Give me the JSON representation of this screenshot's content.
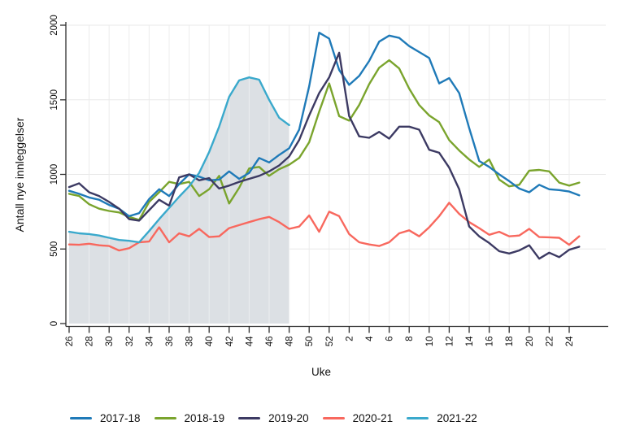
{
  "chart_data": {
    "type": "line",
    "title": "",
    "xlabel": "Uke",
    "ylabel": "Antall nye innleggelser",
    "x_week_labels": [
      26,
      27,
      28,
      29,
      30,
      31,
      32,
      33,
      34,
      35,
      36,
      37,
      38,
      39,
      40,
      41,
      42,
      43,
      44,
      45,
      46,
      47,
      48,
      49,
      50,
      51,
      52,
      1,
      2,
      3,
      4,
      5,
      6,
      7,
      8,
      9,
      10,
      11,
      12,
      13,
      14,
      15,
      16,
      17,
      18,
      19,
      20,
      21,
      22,
      23,
      24,
      25
    ],
    "xtick_labels": [
      "26",
      "28",
      "30",
      "32",
      "34",
      "36",
      "38",
      "40",
      "42",
      "44",
      "46",
      "48",
      "50",
      "52",
      "2",
      "4",
      "6",
      "8",
      "10",
      "12",
      "14",
      "16",
      "18",
      "20",
      "22",
      "24"
    ],
    "ytick_values": [
      0,
      500,
      1000,
      1500,
      2000
    ],
    "ylim": [
      0,
      2050
    ],
    "grid": true,
    "legend_position": "bottom",
    "shaded_region": {
      "description": "light gray-blue area fill under the 2021-22 series from week 26 to week 48",
      "color": "#dce0e4"
    },
    "series": [
      {
        "name": "2017-18",
        "color": "#1f7ab8",
        "values": [
          890,
          870,
          845,
          830,
          795,
          770,
          720,
          740,
          835,
          900,
          855,
          935,
          1000,
          985,
          960,
          965,
          1020,
          970,
          1010,
          1110,
          1080,
          1130,
          1175,
          1300,
          1590,
          1950,
          1910,
          1700,
          1600,
          1660,
          1760,
          1890,
          1930,
          1915,
          1860,
          1820,
          1780,
          1610,
          1645,
          1545,
          1310,
          1090,
          1050,
          1000,
          955,
          905,
          880,
          930,
          900,
          895,
          885,
          860
        ]
      },
      {
        "name": "2018-19",
        "color": "#7aa42d",
        "values": [
          870,
          855,
          800,
          770,
          755,
          745,
          715,
          695,
          815,
          880,
          950,
          935,
          950,
          855,
          900,
          990,
          805,
          910,
          1040,
          1050,
          990,
          1035,
          1065,
          1110,
          1215,
          1420,
          1610,
          1390,
          1360,
          1465,
          1605,
          1715,
          1765,
          1710,
          1575,
          1465,
          1395,
          1350,
          1230,
          1160,
          1100,
          1050,
          1100,
          965,
          920,
          930,
          1025,
          1030,
          1020,
          945,
          925,
          945
        ]
      },
      {
        "name": "2019-20",
        "color": "#3c3a63",
        "values": [
          915,
          940,
          880,
          855,
          815,
          770,
          700,
          690,
          760,
          830,
          790,
          980,
          1000,
          960,
          975,
          905,
          925,
          950,
          970,
          990,
          1020,
          1060,
          1120,
          1230,
          1395,
          1545,
          1650,
          1815,
          1390,
          1255,
          1245,
          1285,
          1240,
          1320,
          1320,
          1300,
          1165,
          1145,
          1045,
          900,
          650,
          585,
          540,
          485,
          470,
          490,
          525,
          435,
          475,
          445,
          495,
          515
        ]
      },
      {
        "name": "2020-21",
        "color": "#f8685e",
        "values": [
          530,
          528,
          535,
          525,
          520,
          490,
          505,
          545,
          550,
          645,
          545,
          605,
          585,
          635,
          580,
          585,
          640,
          660,
          680,
          700,
          715,
          680,
          635,
          650,
          725,
          615,
          750,
          720,
          600,
          545,
          530,
          520,
          545,
          605,
          625,
          585,
          645,
          720,
          810,
          735,
          680,
          640,
          595,
          615,
          585,
          590,
          635,
          580,
          578,
          575,
          528,
          585
        ]
      },
      {
        "name": "2021-22",
        "color": "#3aa9cc",
        "area": true,
        "values": [
          615,
          605,
          600,
          590,
          575,
          560,
          555,
          545,
          620,
          700,
          775,
          850,
          920,
          1010,
          1150,
          1320,
          1520,
          1630,
          1650,
          1635,
          1500,
          1380,
          1330,
          null,
          null,
          null,
          null,
          null,
          null,
          null,
          null,
          null,
          null,
          null,
          null,
          null,
          null,
          null,
          null,
          null,
          null,
          null,
          null,
          null,
          null,
          null,
          null,
          null,
          null,
          null,
          null,
          null
        ]
      }
    ]
  }
}
